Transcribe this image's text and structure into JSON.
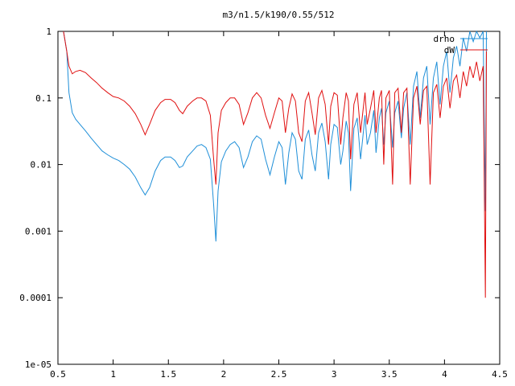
{
  "chart_data": {
    "type": "line",
    "title": "m3/n1.5/k190/0.55/512",
    "xlabel": "",
    "ylabel": "",
    "xlim": [
      0.5,
      4.5
    ],
    "ylim": [
      1e-05,
      1
    ],
    "y_scale": "log",
    "grid": false,
    "legend_position": "top-right",
    "x_ticks": [
      0.5,
      1,
      1.5,
      2,
      2.5,
      3,
      3.5,
      4,
      4.5
    ],
    "x_tick_labels": [
      "0.5",
      "1",
      "1.5",
      "2",
      "2.5",
      "3",
      "3.5",
      "4",
      "4.5"
    ],
    "y_ticks": [
      1e-05,
      0.0001,
      0.001,
      0.01,
      0.1,
      1
    ],
    "y_tick_labels": [
      "1e-05",
      "0.0001",
      "0.001",
      "0.01",
      "0.1",
      "1"
    ],
    "series": [
      {
        "name": "drho",
        "color": "#1f8fd8",
        "x": [
          0.55,
          0.58,
          0.6,
          0.63,
          0.66,
          0.7,
          0.75,
          0.8,
          0.85,
          0.9,
          0.95,
          1.0,
          1.05,
          1.1,
          1.15,
          1.2,
          1.25,
          1.29,
          1.33,
          1.38,
          1.43,
          1.47,
          1.52,
          1.56,
          1.6,
          1.63,
          1.67,
          1.72,
          1.76,
          1.8,
          1.84,
          1.88,
          1.91,
          1.93,
          1.95,
          1.98,
          2.02,
          2.06,
          2.1,
          2.14,
          2.18,
          2.22,
          2.26,
          2.3,
          2.34,
          2.38,
          2.42,
          2.46,
          2.5,
          2.53,
          2.56,
          2.59,
          2.62,
          2.65,
          2.68,
          2.71,
          2.74,
          2.77,
          2.8,
          2.83,
          2.86,
          2.89,
          2.92,
          2.95,
          2.97,
          3.0,
          3.03,
          3.06,
          3.08,
          3.11,
          3.13,
          3.15,
          3.18,
          3.21,
          3.24,
          3.26,
          3.28,
          3.3,
          3.33,
          3.36,
          3.38,
          3.41,
          3.43,
          3.45,
          3.47,
          3.5,
          3.53,
          3.55,
          3.58,
          3.61,
          3.63,
          3.66,
          3.69,
          3.72,
          3.75,
          3.78,
          3.81,
          3.84,
          3.87,
          3.9,
          3.93,
          3.96,
          3.99,
          4.02,
          4.05,
          4.08,
          4.11,
          4.14,
          4.17,
          4.2,
          4.23,
          4.26,
          4.29,
          4.32,
          4.35,
          4.37,
          4.38
        ],
        "values": [
          1.0,
          0.5,
          0.12,
          0.06,
          0.048,
          0.04,
          0.032,
          0.025,
          0.02,
          0.016,
          0.014,
          0.0125,
          0.0115,
          0.01,
          0.0085,
          0.0065,
          0.0045,
          0.0035,
          0.0045,
          0.008,
          0.0115,
          0.013,
          0.013,
          0.0115,
          0.009,
          0.0095,
          0.013,
          0.016,
          0.019,
          0.02,
          0.018,
          0.012,
          0.0025,
          0.0007,
          0.004,
          0.011,
          0.016,
          0.02,
          0.022,
          0.018,
          0.009,
          0.013,
          0.022,
          0.027,
          0.024,
          0.012,
          0.007,
          0.013,
          0.022,
          0.018,
          0.005,
          0.015,
          0.03,
          0.024,
          0.008,
          0.006,
          0.024,
          0.033,
          0.014,
          0.008,
          0.03,
          0.042,
          0.022,
          0.006,
          0.02,
          0.04,
          0.036,
          0.01,
          0.016,
          0.045,
          0.03,
          0.004,
          0.035,
          0.05,
          0.012,
          0.025,
          0.055,
          0.02,
          0.03,
          0.065,
          0.015,
          0.05,
          0.07,
          0.02,
          0.06,
          0.09,
          0.018,
          0.06,
          0.09,
          0.025,
          0.07,
          0.12,
          0.02,
          0.15,
          0.25,
          0.05,
          0.2,
          0.3,
          0.04,
          0.2,
          0.35,
          0.08,
          0.3,
          0.5,
          0.12,
          0.4,
          0.6,
          0.3,
          0.8,
          0.5,
          1.0,
          0.7,
          1.2,
          0.8,
          1.0,
          0.002,
          1.0
        ]
      },
      {
        "name": "dW",
        "color": "#e01010",
        "x": [
          0.55,
          0.58,
          0.6,
          0.63,
          0.66,
          0.7,
          0.75,
          0.8,
          0.85,
          0.9,
          0.95,
          1.0,
          1.05,
          1.1,
          1.15,
          1.2,
          1.25,
          1.29,
          1.33,
          1.38,
          1.43,
          1.47,
          1.52,
          1.56,
          1.6,
          1.63,
          1.67,
          1.72,
          1.76,
          1.8,
          1.84,
          1.88,
          1.91,
          1.93,
          1.95,
          1.98,
          2.02,
          2.06,
          2.1,
          2.14,
          2.18,
          2.22,
          2.26,
          2.3,
          2.34,
          2.38,
          2.42,
          2.46,
          2.5,
          2.53,
          2.56,
          2.59,
          2.62,
          2.65,
          2.68,
          2.71,
          2.74,
          2.77,
          2.8,
          2.83,
          2.86,
          2.89,
          2.92,
          2.95,
          2.97,
          3.0,
          3.03,
          3.06,
          3.08,
          3.11,
          3.13,
          3.15,
          3.18,
          3.21,
          3.24,
          3.26,
          3.28,
          3.3,
          3.33,
          3.36,
          3.38,
          3.41,
          3.43,
          3.45,
          3.47,
          3.5,
          3.53,
          3.55,
          3.58,
          3.61,
          3.63,
          3.66,
          3.69,
          3.72,
          3.75,
          3.78,
          3.81,
          3.84,
          3.87,
          3.9,
          3.93,
          3.96,
          3.99,
          4.02,
          4.05,
          4.08,
          4.11,
          4.14,
          4.17,
          4.2,
          4.23,
          4.26,
          4.29,
          4.32,
          4.35,
          4.37,
          4.38
        ],
        "values": [
          1.0,
          0.5,
          0.3,
          0.23,
          0.25,
          0.26,
          0.24,
          0.2,
          0.17,
          0.14,
          0.12,
          0.105,
          0.1,
          0.09,
          0.075,
          0.058,
          0.04,
          0.028,
          0.04,
          0.065,
          0.085,
          0.095,
          0.095,
          0.085,
          0.065,
          0.058,
          0.075,
          0.09,
          0.1,
          0.1,
          0.09,
          0.055,
          0.012,
          0.005,
          0.03,
          0.065,
          0.085,
          0.1,
          0.1,
          0.08,
          0.04,
          0.06,
          0.1,
          0.12,
          0.1,
          0.055,
          0.035,
          0.06,
          0.1,
          0.09,
          0.03,
          0.07,
          0.115,
          0.09,
          0.03,
          0.022,
          0.09,
          0.12,
          0.06,
          0.028,
          0.1,
          0.13,
          0.08,
          0.02,
          0.075,
          0.12,
          0.11,
          0.02,
          0.05,
          0.12,
          0.09,
          0.012,
          0.08,
          0.12,
          0.03,
          0.06,
          0.12,
          0.04,
          0.07,
          0.13,
          0.03,
          0.1,
          0.13,
          0.01,
          0.1,
          0.13,
          0.005,
          0.12,
          0.14,
          0.03,
          0.12,
          0.14,
          0.005,
          0.1,
          0.15,
          0.04,
          0.13,
          0.15,
          0.005,
          0.12,
          0.16,
          0.05,
          0.15,
          0.2,
          0.07,
          0.18,
          0.22,
          0.1,
          0.25,
          0.15,
          0.3,
          0.2,
          0.35,
          0.18,
          0.3,
          0.0001,
          0.5
        ]
      }
    ]
  }
}
